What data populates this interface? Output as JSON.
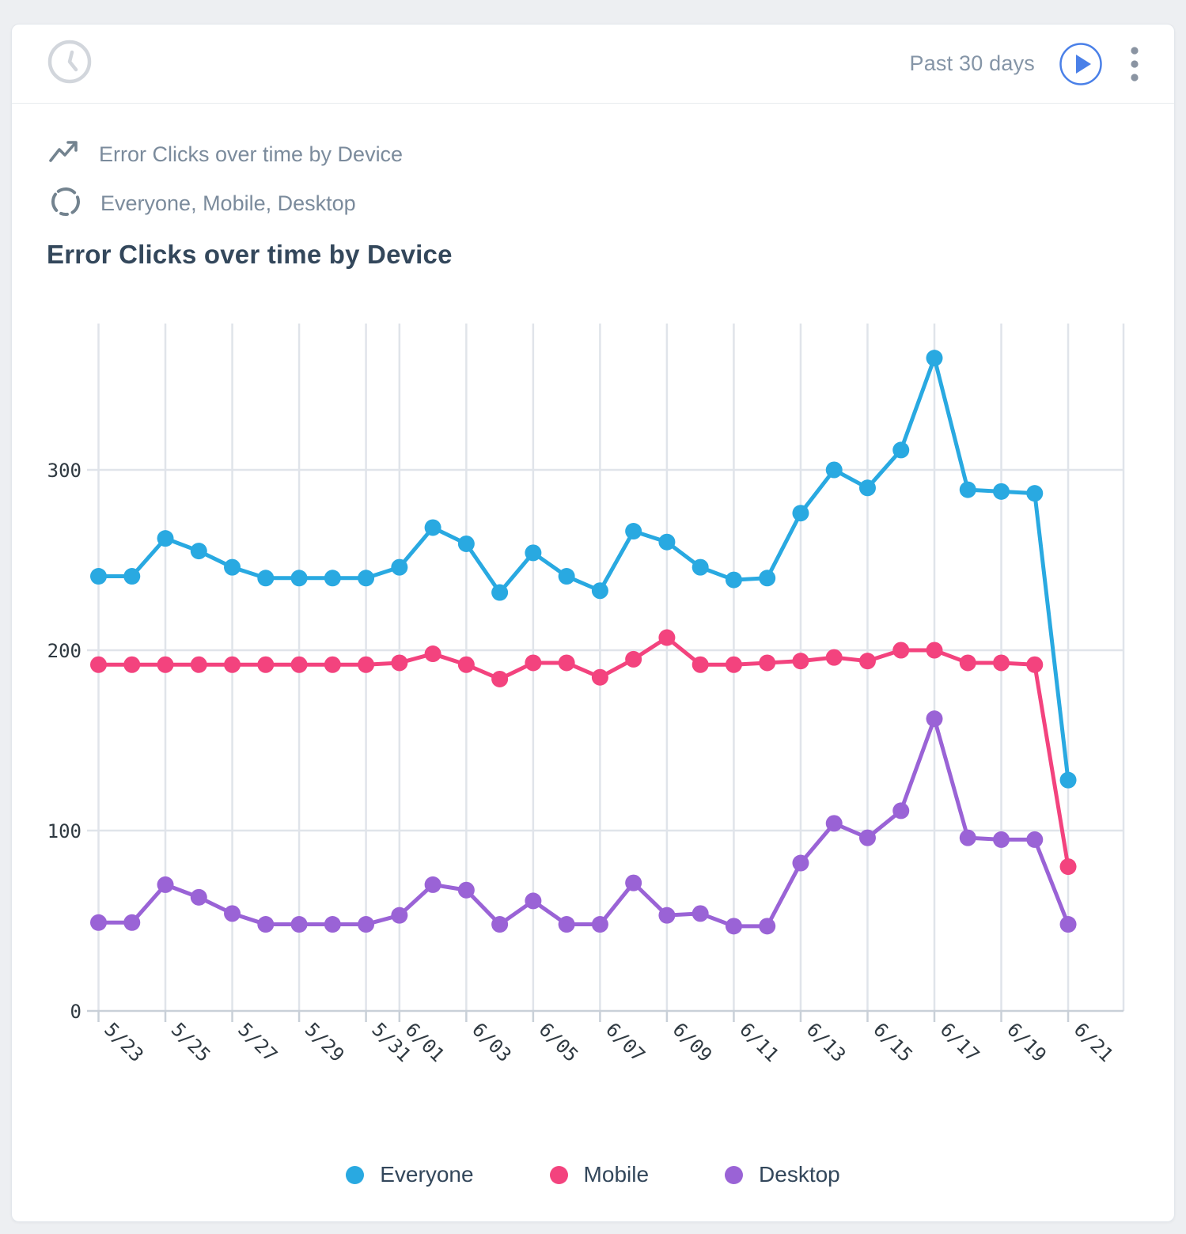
{
  "toolbar": {
    "range_label": "Past 30 days"
  },
  "header": {
    "metric_line": "Error Clicks over time by Device",
    "segments_line": "Everyone, Mobile, Desktop"
  },
  "title": "Error Clicks over time by Device",
  "colors": {
    "everyone": "#29a9e1",
    "mobile": "#f3437e",
    "desktop": "#9a63d6",
    "play_accent": "#4a80e8",
    "icon_gray": "#73838f",
    "clock_gray": "#d2d6dc",
    "kebab_gray": "#8a94a2",
    "gridline": "#e0e4ea",
    "axis_line": "#c9d0d8"
  },
  "icons": [
    "clock-icon",
    "play-icon",
    "kebab-icon",
    "trend-icon",
    "segments-icon"
  ],
  "chart_data": {
    "type": "line",
    "title": "Error Clicks over time by Device",
    "xlabel": "",
    "ylabel": "",
    "grid": true,
    "legend_position": "bottom",
    "ylim": [
      0,
      380
    ],
    "yticks": [
      0,
      100,
      200,
      300
    ],
    "x": [
      "5/23",
      "5/24",
      "5/25",
      "5/26",
      "5/27",
      "5/28",
      "5/29",
      "5/30",
      "5/31",
      "6/01",
      "6/02",
      "6/03",
      "6/04",
      "6/05",
      "6/06",
      "6/07",
      "6/08",
      "6/09",
      "6/10",
      "6/11",
      "6/12",
      "6/13",
      "6/14",
      "6/15",
      "6/16",
      "6/17",
      "6/18",
      "6/19",
      "6/20",
      "6/21"
    ],
    "x_tick_labels": [
      "5/23",
      "5/25",
      "5/27",
      "5/29",
      "5/31",
      "6/01",
      "6/03",
      "6/05",
      "6/07",
      "6/09",
      "6/11",
      "6/13",
      "6/15",
      "6/17",
      "6/19",
      "6/21"
    ],
    "series": [
      {
        "name": "Everyone",
        "color_key": "everyone",
        "values": [
          241,
          241,
          262,
          255,
          246,
          240,
          240,
          240,
          240,
          246,
          268,
          259,
          232,
          254,
          241,
          233,
          266,
          260,
          246,
          239,
          240,
          276,
          300,
          290,
          311,
          362,
          289,
          288,
          287,
          128
        ]
      },
      {
        "name": "Mobile",
        "color_key": "mobile",
        "values": [
          192,
          192,
          192,
          192,
          192,
          192,
          192,
          192,
          192,
          193,
          198,
          192,
          184,
          193,
          193,
          185,
          195,
          207,
          192,
          192,
          193,
          194,
          196,
          194,
          200,
          200,
          193,
          193,
          192,
          80
        ]
      },
      {
        "name": "Desktop",
        "color_key": "desktop",
        "values": [
          49,
          49,
          70,
          63,
          54,
          48,
          48,
          48,
          48,
          53,
          70,
          67,
          48,
          61,
          48,
          48,
          71,
          53,
          54,
          47,
          47,
          82,
          104,
          96,
          111,
          162,
          96,
          95,
          95,
          48
        ]
      }
    ]
  },
  "legend": {
    "items": [
      {
        "label": "Everyone",
        "color_key": "everyone"
      },
      {
        "label": "Mobile",
        "color_key": "mobile"
      },
      {
        "label": "Desktop",
        "color_key": "desktop"
      }
    ]
  }
}
